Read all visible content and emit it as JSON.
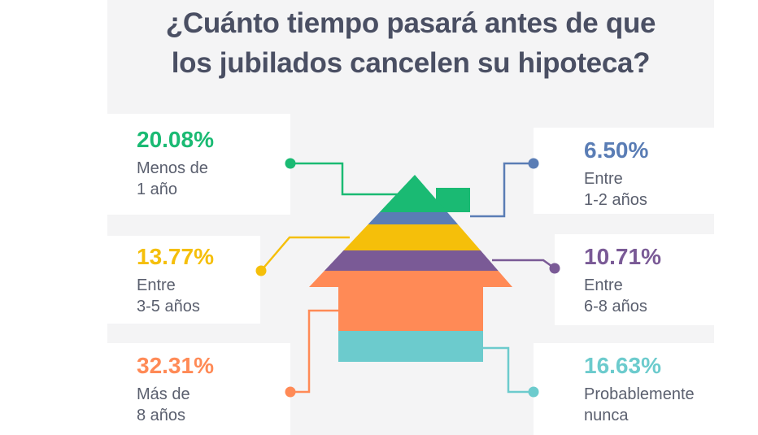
{
  "title": {
    "line1": "¿Cuánto tiempo pasará antes de que",
    "line2": "los jubilados cancelen su hipoteca?"
  },
  "chart_data": {
    "type": "pie",
    "title": "¿Cuánto tiempo pasará antes de que los jubilados cancelen su hipoteca?",
    "unit": "%",
    "series": [
      {
        "name": "Menos de 1 año",
        "value": 20.08,
        "label": "20.08%",
        "lines": [
          "Menos de",
          "1 año"
        ],
        "color": "#1aba73"
      },
      {
        "name": "Entre 1-2 años",
        "value": 6.5,
        "label": "6.50%",
        "lines": [
          "Entre",
          "1-2 años"
        ],
        "color": "#5a7db5"
      },
      {
        "name": "Entre 3-5 años",
        "value": 13.77,
        "label": "13.77%",
        "lines": [
          "Entre",
          "3-5 años"
        ],
        "color": "#f5bf0a"
      },
      {
        "name": "Entre 6-8 años",
        "value": 10.71,
        "label": "10.71%",
        "lines": [
          "Entre",
          "6-8 años"
        ],
        "color": "#7a5a96"
      },
      {
        "name": "Más de 8 años",
        "value": 32.31,
        "label": "32.31%",
        "lines": [
          "Más de",
          "8 años"
        ],
        "color": "#ff8a56"
      },
      {
        "name": "Probablemente nunca",
        "value": 16.63,
        "label": "16.63%",
        "lines": [
          "Probablemente",
          "nunca"
        ],
        "color": "#6ccbcd"
      }
    ],
    "legend": "callouts"
  }
}
